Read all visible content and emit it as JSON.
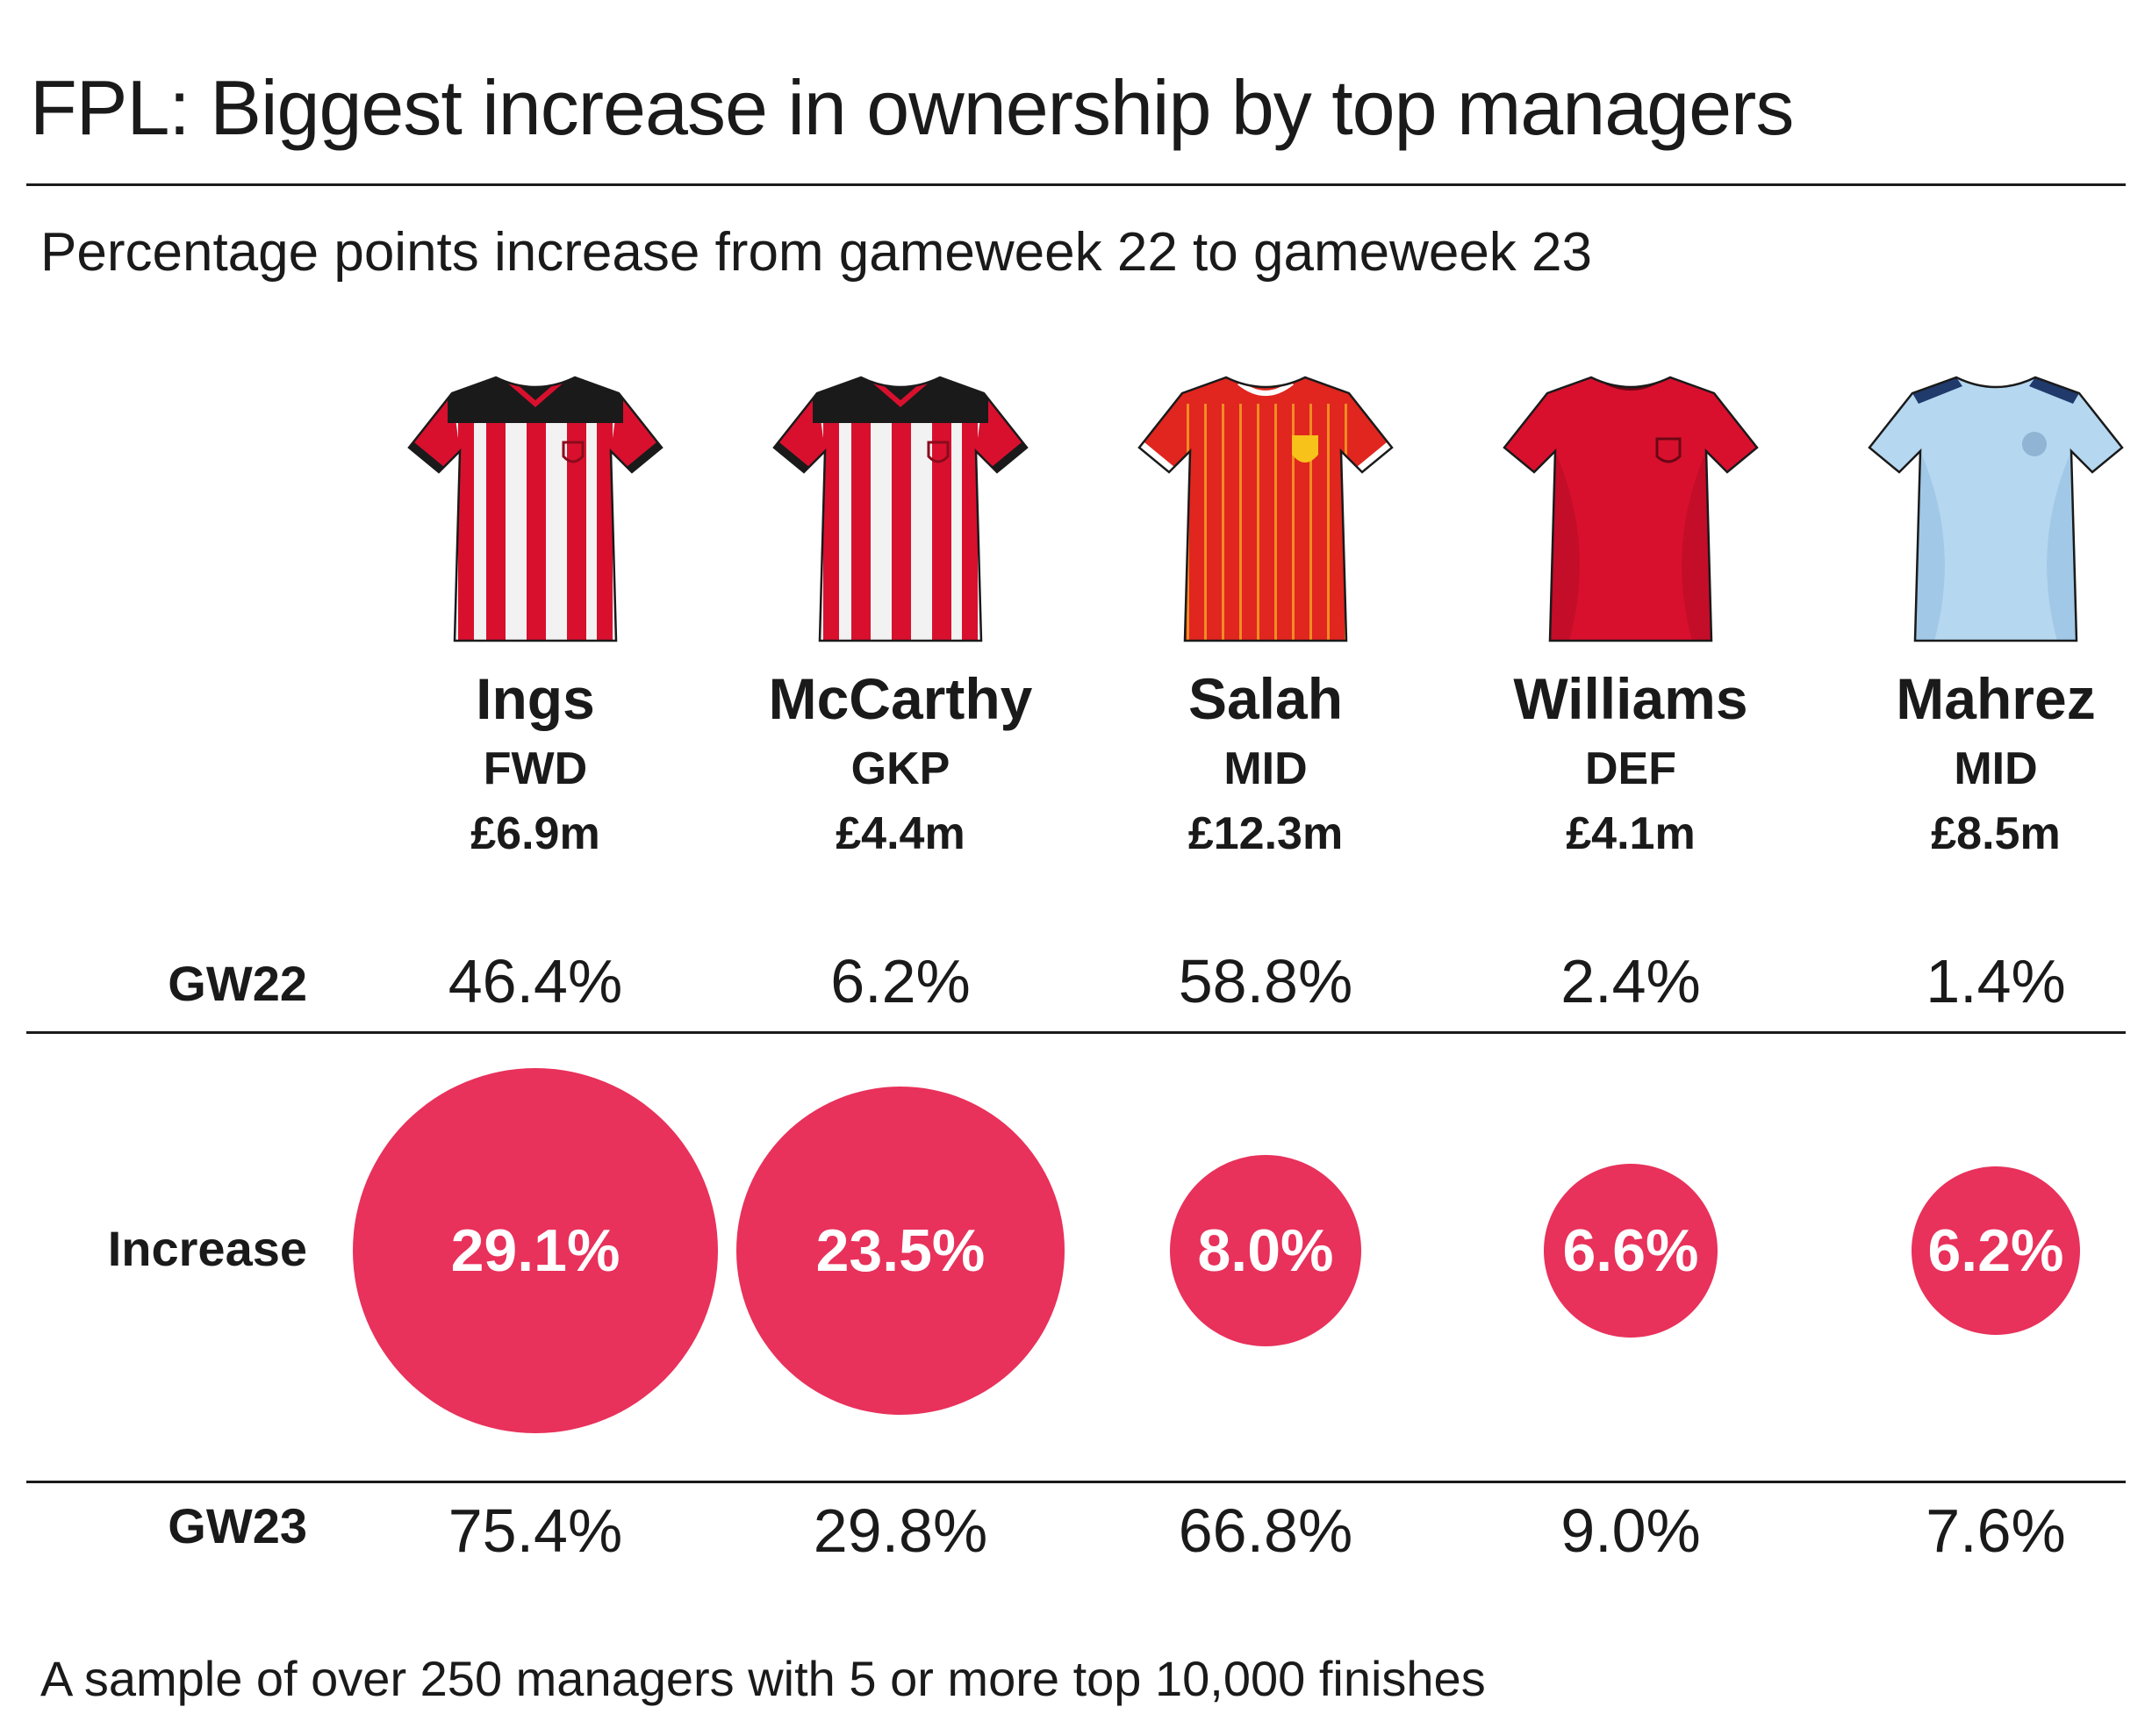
{
  "header": {
    "title": "FPL: Biggest increase in ownership by top managers",
    "subtitle": "Percentage points increase from gameweek 22 to gameweek 23"
  },
  "row_labels": {
    "gw22": "GW22",
    "increase": "Increase",
    "gw23": "GW23"
  },
  "footnote": "A sample of over 250 managers with 5 or more top 10,000 finishes",
  "colors": {
    "bubble": "#e8315b",
    "text": "#1a1a1a"
  },
  "players": [
    {
      "name": "Ings",
      "position": "FWD",
      "price": "£6.9m",
      "gw22": "46.4%",
      "increase": "29.1%",
      "gw23": "75.4%",
      "shirt": "red-white-stripes-black-yoke"
    },
    {
      "name": "McCarthy",
      "position": "GKP",
      "price": "£4.4m",
      "gw22": "6.2%",
      "increase": "23.5%",
      "gw23": "29.8%",
      "shirt": "red-white-stripes-black-yoke"
    },
    {
      "name": "Salah",
      "position": "MID",
      "price": "£12.3m",
      "gw22": "58.8%",
      "increase": "8.0%",
      "gw23": "66.8%",
      "shirt": "red-pinstripe"
    },
    {
      "name": "Williams",
      "position": "DEF",
      "price": "£4.1m",
      "gw22": "2.4%",
      "increase": "6.6%",
      "gw23": "9.0%",
      "shirt": "red-plain"
    },
    {
      "name": "Mahrez",
      "position": "MID",
      "price": "£8.5m",
      "gw22": "1.4%",
      "increase": "6.2%",
      "gw23": "7.6%",
      "shirt": "sky-blue"
    }
  ],
  "chart_data": {
    "type": "bubble",
    "categories": [
      "Ings",
      "McCarthy",
      "Salah",
      "Williams",
      "Mahrez"
    ],
    "series": [
      {
        "name": "GW22",
        "values": [
          46.4,
          6.2,
          58.8,
          2.4,
          1.4
        ]
      },
      {
        "name": "Increase",
        "values": [
          29.1,
          23.5,
          8.0,
          6.6,
          6.2
        ]
      },
      {
        "name": "GW23",
        "values": [
          75.4,
          29.8,
          66.8,
          9.0,
          7.6
        ]
      }
    ],
    "title": "FPL: Biggest increase in ownership by top managers",
    "subtitle": "Percentage points increase from gameweek 22 to gameweek 23"
  }
}
